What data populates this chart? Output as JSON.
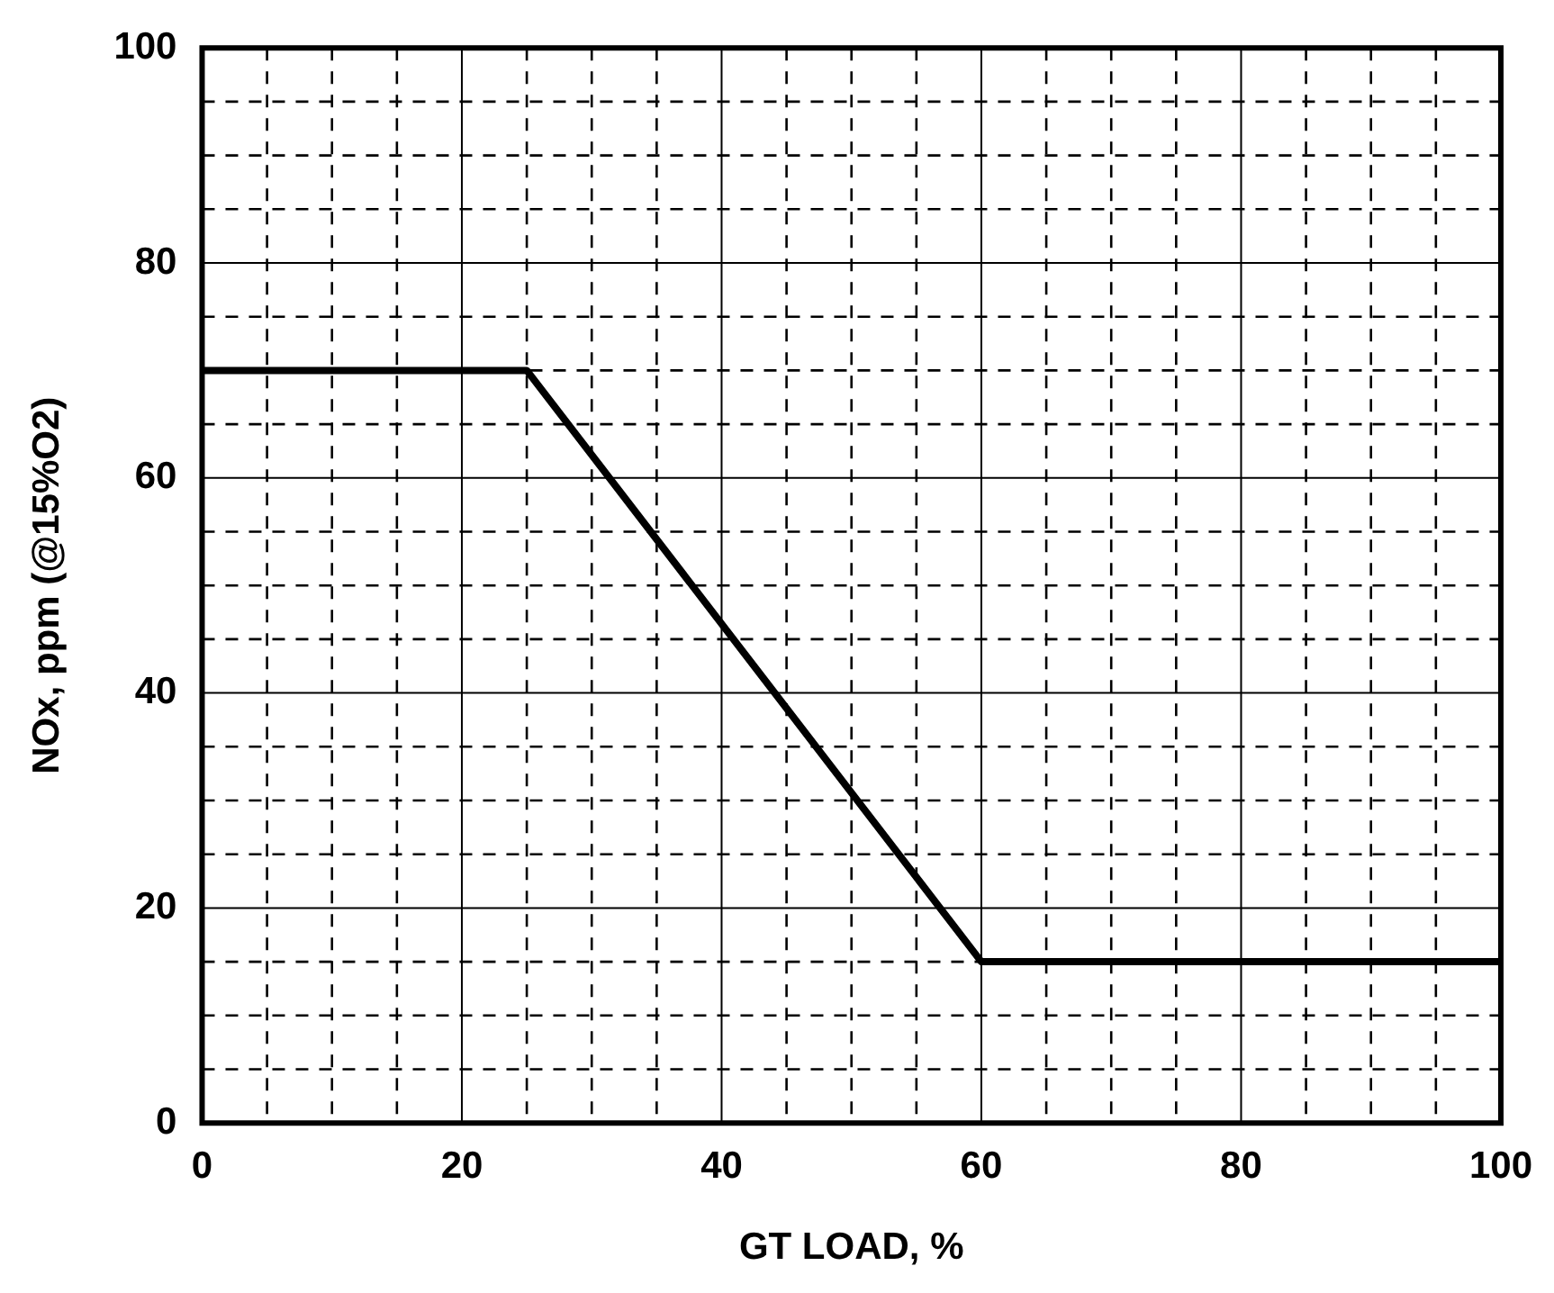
{
  "chart_data": {
    "type": "line",
    "xlabel": "GT LOAD, %",
    "ylabel": "NOx, ppm (@15%O2)",
    "x": [
      0,
      25,
      60,
      100
    ],
    "series": [
      {
        "color": "#000000",
        "values": [
          70,
          70,
          15,
          15
        ]
      }
    ],
    "xlim": [
      0,
      100
    ],
    "ylim": [
      0,
      100
    ],
    "xticks": [
      0,
      {
        "value": 5,
        "label": null
      },
      {
        "value": 10,
        "label": null
      },
      {
        "value": 15,
        "label": null
      },
      20,
      {
        "value": 25,
        "label": null
      },
      {
        "value": 30,
        "label": null
      },
      {
        "value": 35,
        "label": null
      },
      40,
      {
        "value": 45,
        "label": null
      },
      {
        "value": 50,
        "label": null
      },
      {
        "value": 55,
        "label": null
      },
      60,
      {
        "value": 65,
        "label": null
      },
      {
        "value": 70,
        "label": null
      },
      {
        "value": 75,
        "label": null
      },
      80,
      {
        "value": 85,
        "label": null
      },
      {
        "value": 90,
        "label": null
      },
      {
        "value": 95,
        "label": null
      },
      100
    ],
    "yticks": [
      0,
      {
        "value": 5,
        "label": null
      },
      {
        "value": 10,
        "label": null
      },
      {
        "value": 15,
        "label": null
      },
      20,
      {
        "value": 25,
        "label": null
      },
      {
        "value": 30,
        "label": null
      },
      {
        "value": 35,
        "label": null
      },
      40,
      {
        "value": 45,
        "label": null
      },
      {
        "value": 50,
        "label": null
      },
      {
        "value": 55,
        "label": null
      },
      60,
      {
        "value": 65,
        "label": null
      },
      {
        "value": 70,
        "label": null
      },
      {
        "value": 75,
        "label": null
      },
      80,
      {
        "value": 85,
        "label": null
      },
      {
        "value": 90,
        "label": null
      },
      {
        "value": 95,
        "label": null
      },
      100
    ],
    "grid": true,
    "marker": "none",
    "line_style": "solid",
    "legend": false
  }
}
